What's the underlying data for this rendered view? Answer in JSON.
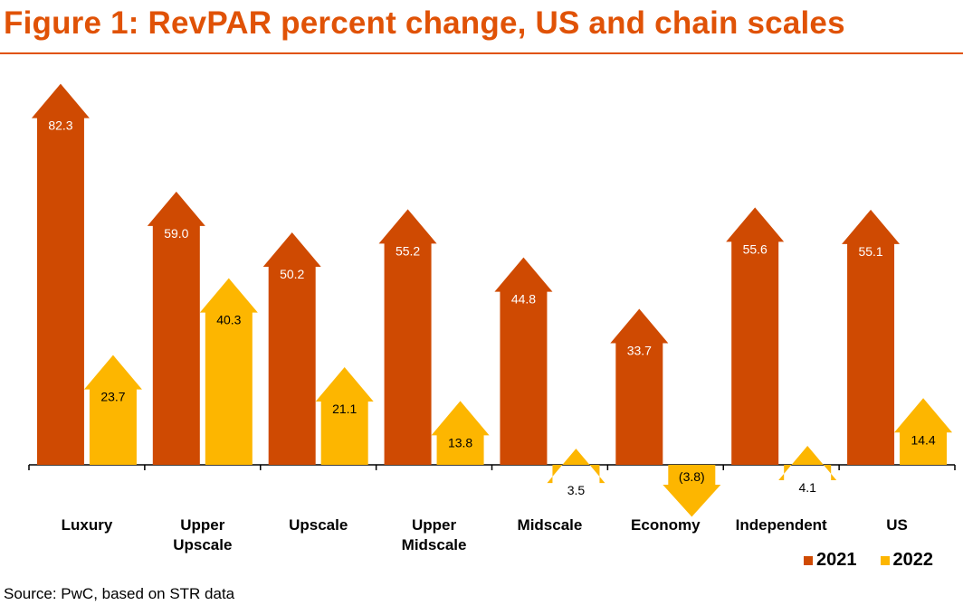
{
  "colors": {
    "accent": "#e05206",
    "series_2021": "#cf4a02",
    "series_2022": "#fdb600",
    "axis": "#000000",
    "label_2021": "#ffffff",
    "label_2022": "#000000"
  },
  "legend": {
    "placement": "bottom-right"
  },
  "source": "Source: PwC, based on STR data",
  "chart_data": {
    "type": "bar",
    "title": "Figure 1: RevPAR percent change, US and chain scales",
    "categories": [
      [
        "Luxury"
      ],
      [
        "Upper",
        "Upscale"
      ],
      [
        "Upscale"
      ],
      [
        "Upper",
        "Midscale"
      ],
      [
        "Midscale"
      ],
      [
        "Economy"
      ],
      [
        "Independent"
      ],
      [
        "US"
      ]
    ],
    "series": [
      {
        "name": "2021",
        "values": [
          82.3,
          59.0,
          50.2,
          55.2,
          44.8,
          33.7,
          55.6,
          55.1
        ],
        "labels": [
          "82.3",
          "59.0",
          "50.2",
          "55.2",
          "44.8",
          "33.7",
          "55.6",
          "55.1"
        ]
      },
      {
        "name": "2022",
        "values": [
          23.7,
          40.3,
          21.1,
          13.8,
          3.5,
          -3.8,
          4.1,
          14.4
        ],
        "labels": [
          "23.7",
          "40.3",
          "21.1",
          "13.8",
          "3.5",
          "(3.8)",
          "4.1",
          "14.4"
        ]
      }
    ],
    "xlabel": "",
    "ylabel": "",
    "grid": false,
    "bar_shape": "arrow"
  }
}
